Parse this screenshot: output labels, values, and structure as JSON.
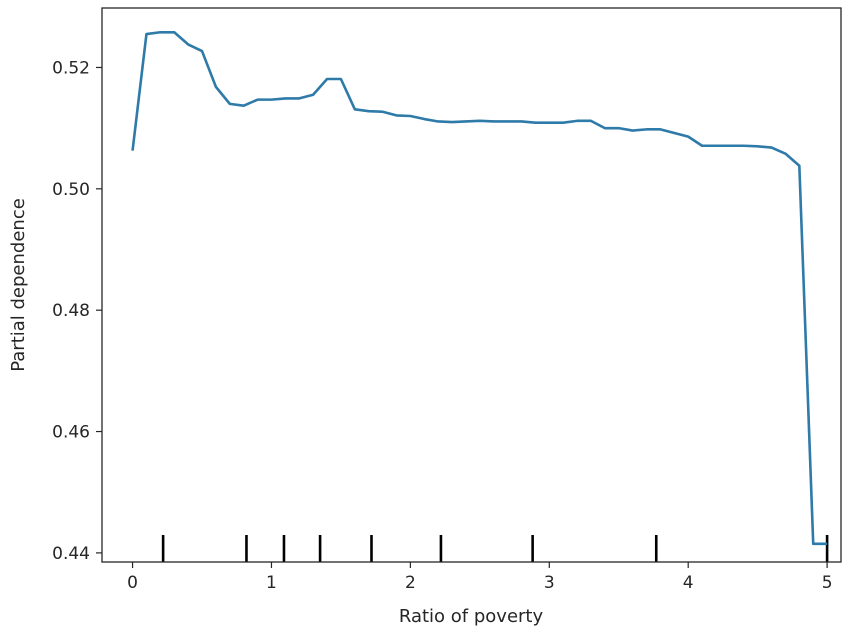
{
  "chart_data": {
    "type": "line",
    "title": "",
    "xlabel": "Ratio of poverty",
    "ylabel": "Partial dependence",
    "xlim": [
      -0.22,
      5.1
    ],
    "ylim": [
      0.4385,
      0.5298
    ],
    "x_ticks": [
      0,
      1,
      2,
      3,
      4,
      5
    ],
    "x_tick_labels": [
      "0",
      "1",
      "2",
      "3",
      "4",
      "5"
    ],
    "y_ticks": [
      0.44,
      0.46,
      0.48,
      0.5,
      0.52
    ],
    "y_tick_labels": [
      "0.44",
      "0.46",
      "0.48",
      "0.50",
      "0.52"
    ],
    "grid": false,
    "line_color": "#2e7aa8",
    "rug_color": "#000000",
    "series": [
      {
        "x": [
          0.0,
          0.1,
          0.2,
          0.3,
          0.4,
          0.5,
          0.6,
          0.7,
          0.8,
          0.9,
          1.0,
          1.1,
          1.2,
          1.3,
          1.4,
          1.5,
          1.6,
          1.7,
          1.8,
          1.9,
          2.0,
          2.1,
          2.2,
          2.3,
          2.4,
          2.5,
          2.6,
          2.7,
          2.8,
          2.9,
          3.0,
          3.1,
          3.2,
          3.3,
          3.4,
          3.5,
          3.6,
          3.7,
          3.8,
          3.9,
          4.0,
          4.1,
          4.2,
          4.3,
          4.4,
          4.5,
          4.6,
          4.7,
          4.8,
          4.9,
          5.0
        ],
        "values": [
          0.5063,
          0.5255,
          0.5258,
          0.5258,
          0.5238,
          0.5227,
          0.5168,
          0.514,
          0.5137,
          0.5147,
          0.5147,
          0.5149,
          0.5149,
          0.5155,
          0.5181,
          0.5181,
          0.5131,
          0.5128,
          0.5127,
          0.5121,
          0.512,
          0.5115,
          0.5111,
          0.511,
          0.5111,
          0.5112,
          0.5111,
          0.5111,
          0.5111,
          0.5109,
          0.5109,
          0.5109,
          0.5112,
          0.5112,
          0.51,
          0.51,
          0.5096,
          0.5098,
          0.5098,
          0.5092,
          0.5086,
          0.5071,
          0.5071,
          0.5071,
          0.5071,
          0.507,
          0.5068,
          0.5058,
          0.5038,
          0.4415,
          0.4415
        ]
      }
    ],
    "rug": [
      0.22,
      0.82,
      1.09,
      1.35,
      1.72,
      2.22,
      2.88,
      3.77,
      5.0
    ]
  }
}
